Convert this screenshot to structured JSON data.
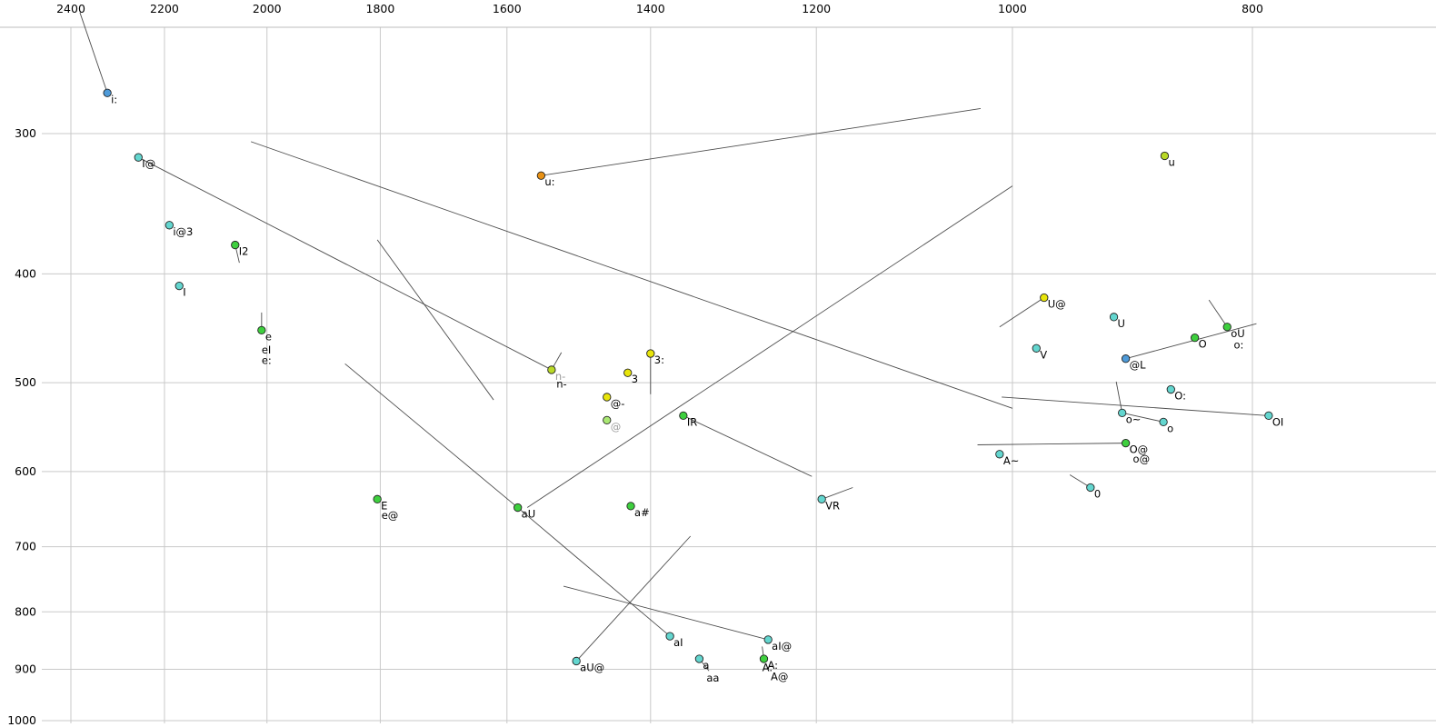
{
  "chart_data": {
    "type": "scatter",
    "title": "",
    "x_axis": {
      "ticks": [
        2400,
        2200,
        2000,
        1800,
        1600,
        1400,
        1200,
        1000,
        800
      ],
      "scale": "log",
      "reversed": true
    },
    "y_axis": {
      "ticks": [
        300,
        400,
        500,
        600,
        700,
        800,
        900,
        1000
      ],
      "scale": "log",
      "reversed": true
    },
    "points": [
      {
        "label": "i:",
        "f2": 2320,
        "f1": 276,
        "color": "blue"
      },
      {
        "label": "I@",
        "f2": 2254,
        "f1": 315,
        "color": "cyan"
      },
      {
        "label": "i@3",
        "f2": 2190,
        "f1": 362,
        "color": "cyan"
      },
      {
        "label": "I2",
        "f2": 2060,
        "f1": 377,
        "color": "green"
      },
      {
        "label": "I",
        "f2": 2170,
        "f1": 410,
        "color": "cyan"
      },
      {
        "label": "e",
        "f2": 2010,
        "f1": 449,
        "color": "green"
      },
      {
        "label": "u:",
        "f2": 1550,
        "f1": 327,
        "color": "orange"
      },
      {
        "label": "n-",
        "f2": 1535,
        "f1": 487,
        "color": "yellowgreen",
        "label_color": "muted"
      },
      {
        "label": "3",
        "f2": 1430,
        "f1": 490,
        "color": "yellow"
      },
      {
        "label": "3:",
        "f2": 1400,
        "f1": 471,
        "color": "yellow"
      },
      {
        "label": "@-",
        "f2": 1458,
        "f1": 515,
        "color": "yellow"
      },
      {
        "label": "@",
        "f2": 1458,
        "f1": 540,
        "color": "lightgreen",
        "label_color": "muted"
      },
      {
        "label": "IR",
        "f2": 1358,
        "f1": 535,
        "color": "green"
      },
      {
        "label": "E",
        "f2": 1805,
        "f1": 635,
        "color": "green"
      },
      {
        "label": "aU",
        "f2": 1584,
        "f1": 646,
        "color": "green"
      },
      {
        "label": "a#",
        "f2": 1426,
        "f1": 644,
        "color": "green"
      },
      {
        "label": "VR",
        "f2": 1194,
        "f1": 635,
        "color": "cyan"
      },
      {
        "label": "U@",
        "f2": 971,
        "f1": 420,
        "color": "yellow"
      },
      {
        "label": "U",
        "f2": 910,
        "f1": 437,
        "color": "cyan"
      },
      {
        "label": "V",
        "f2": 978,
        "f1": 466,
        "color": "cyan"
      },
      {
        "label": "u",
        "f2": 868,
        "f1": 314,
        "color": "yellowgreen"
      },
      {
        "label": "oU",
        "f2": 819,
        "f1": 446,
        "color": "green"
      },
      {
        "label": "O",
        "f2": 844,
        "f1": 456,
        "color": "green"
      },
      {
        "label": "@L",
        "f2": 900,
        "f1": 476,
        "color": "blue"
      },
      {
        "label": "O:",
        "f2": 863,
        "f1": 507,
        "color": "cyan"
      },
      {
        "label": "o~",
        "f2": 903,
        "f1": 532,
        "color": "cyan"
      },
      {
        "label": "o",
        "f2": 869,
        "f1": 542,
        "color": "cyan"
      },
      {
        "label": "OI",
        "f2": 788,
        "f1": 535,
        "color": "cyan"
      },
      {
        "label": "O@",
        "f2": 900,
        "f1": 566,
        "color": "green"
      },
      {
        "label": "A~",
        "f2": 1012,
        "f1": 579,
        "color": "cyan"
      },
      {
        "label": "0",
        "f2": 930,
        "f1": 620,
        "color": "cyan"
      },
      {
        "label": "aI",
        "f2": 1375,
        "f1": 841,
        "color": "cyan"
      },
      {
        "label": "aI@",
        "f2": 1255,
        "f1": 847,
        "color": "cyan"
      },
      {
        "label": "aU@",
        "f2": 1500,
        "f1": 885,
        "color": "cyan"
      },
      {
        "label": "a",
        "f2": 1338,
        "f1": 881,
        "color": "cyan"
      },
      {
        "label": "A:",
        "f2": 1260,
        "f1": 881,
        "color": "green"
      }
    ],
    "extra_labels": [
      {
        "text": "eI",
        "f2": 2010,
        "f1": 471
      },
      {
        "text": "e:",
        "f2": 2010,
        "f1": 481
      },
      {
        "text": "n-",
        "f2": 1528,
        "f1": 505
      },
      {
        "text": "e@",
        "f2": 1798,
        "f1": 661
      },
      {
        "text": "o:",
        "f2": 814,
        "f1": 466
      },
      {
        "text": "o@",
        "f2": 894,
        "f1": 589
      },
      {
        "text": "aa",
        "f2": 1329,
        "f1": 923
      },
      {
        "text": "A@",
        "f2": 1252,
        "f1": 920
      },
      {
        "text": "A:",
        "f2": 1262,
        "f1": 903
      }
    ],
    "trajectories": [
      {
        "from": [
          2380,
          234
        ],
        "to": [
          2320,
          276
        ]
      },
      {
        "from": [
          2254,
          315
        ],
        "to": [
          1535,
          487
        ]
      },
      {
        "from": [
          2030,
          305
        ],
        "to": [
          1000,
          527
        ]
      },
      {
        "from": [
          1805,
          373
        ],
        "to": [
          1620,
          518
        ]
      },
      {
        "from": [
          2010,
          433
        ],
        "to": [
          2010,
          449
        ]
      },
      {
        "from": [
          2060,
          377
        ],
        "to": [
          2052,
          391
        ]
      },
      {
        "from": [
          1550,
          327
        ],
        "to": [
          1030,
          285
        ]
      },
      {
        "from": [
          1521,
          470
        ],
        "to": [
          1535,
          487
        ]
      },
      {
        "from": [
          1400,
          471
        ],
        "to": [
          1400,
          512
        ]
      },
      {
        "from": [
          1358,
          535
        ],
        "to": [
          1205,
          606
        ]
      },
      {
        "from": [
          1860,
          481
        ],
        "to": [
          1584,
          646
        ]
      },
      {
        "from": [
          1570,
          646
        ],
        "to": [
          1000,
          334
        ]
      },
      {
        "from": [
          1584,
          646
        ],
        "to": [
          1375,
          841
        ]
      },
      {
        "from": [
          1349,
          685
        ],
        "to": [
          1500,
          885
        ]
      },
      {
        "from": [
          1518,
          759
        ],
        "to": [
          1255,
          847
        ]
      },
      {
        "from": [
          1262,
          859
        ],
        "to": [
          1260,
          881
        ]
      },
      {
        "from": [
          1338,
          881
        ],
        "to": [
          1326,
          903
        ]
      },
      {
        "from": [
          1194,
          635
        ],
        "to": [
          1160,
          620
        ]
      },
      {
        "from": [
          971,
          420
        ],
        "to": [
          1012,
          446
        ]
      },
      {
        "from": [
          833,
          422
        ],
        "to": [
          819,
          446
        ]
      },
      {
        "from": [
          900,
          476
        ],
        "to": [
          797,
          443
        ]
      },
      {
        "from": [
          788,
          535
        ],
        "to": [
          1010,
          515
        ]
      },
      {
        "from": [
          908,
          499
        ],
        "to": [
          903,
          532
        ]
      },
      {
        "from": [
          903,
          532
        ],
        "to": [
          869,
          542
        ]
      },
      {
        "from": [
          900,
          566
        ],
        "to": [
          1033,
          568
        ]
      },
      {
        "from": [
          948,
          604
        ],
        "to": [
          930,
          620
        ]
      }
    ]
  },
  "palette": {
    "blue": "#4f9bd9",
    "cyan": "#63d6cf",
    "green": "#3ecf3e",
    "lightgreen": "#aae873",
    "yellowgreen": "#b9d926",
    "yellow": "#e8e50a",
    "orange": "#e89114"
  },
  "style": {
    "background": "#ffffff",
    "grid_line_color": "#c9c9c9",
    "border_color": "#bdbdbd",
    "trajectory_color": "#3a3a3a",
    "dot_stroke": "#222222",
    "label_color": "#000000",
    "muted_label_color": "#9a9a9a",
    "tick_color": "#000000"
  }
}
